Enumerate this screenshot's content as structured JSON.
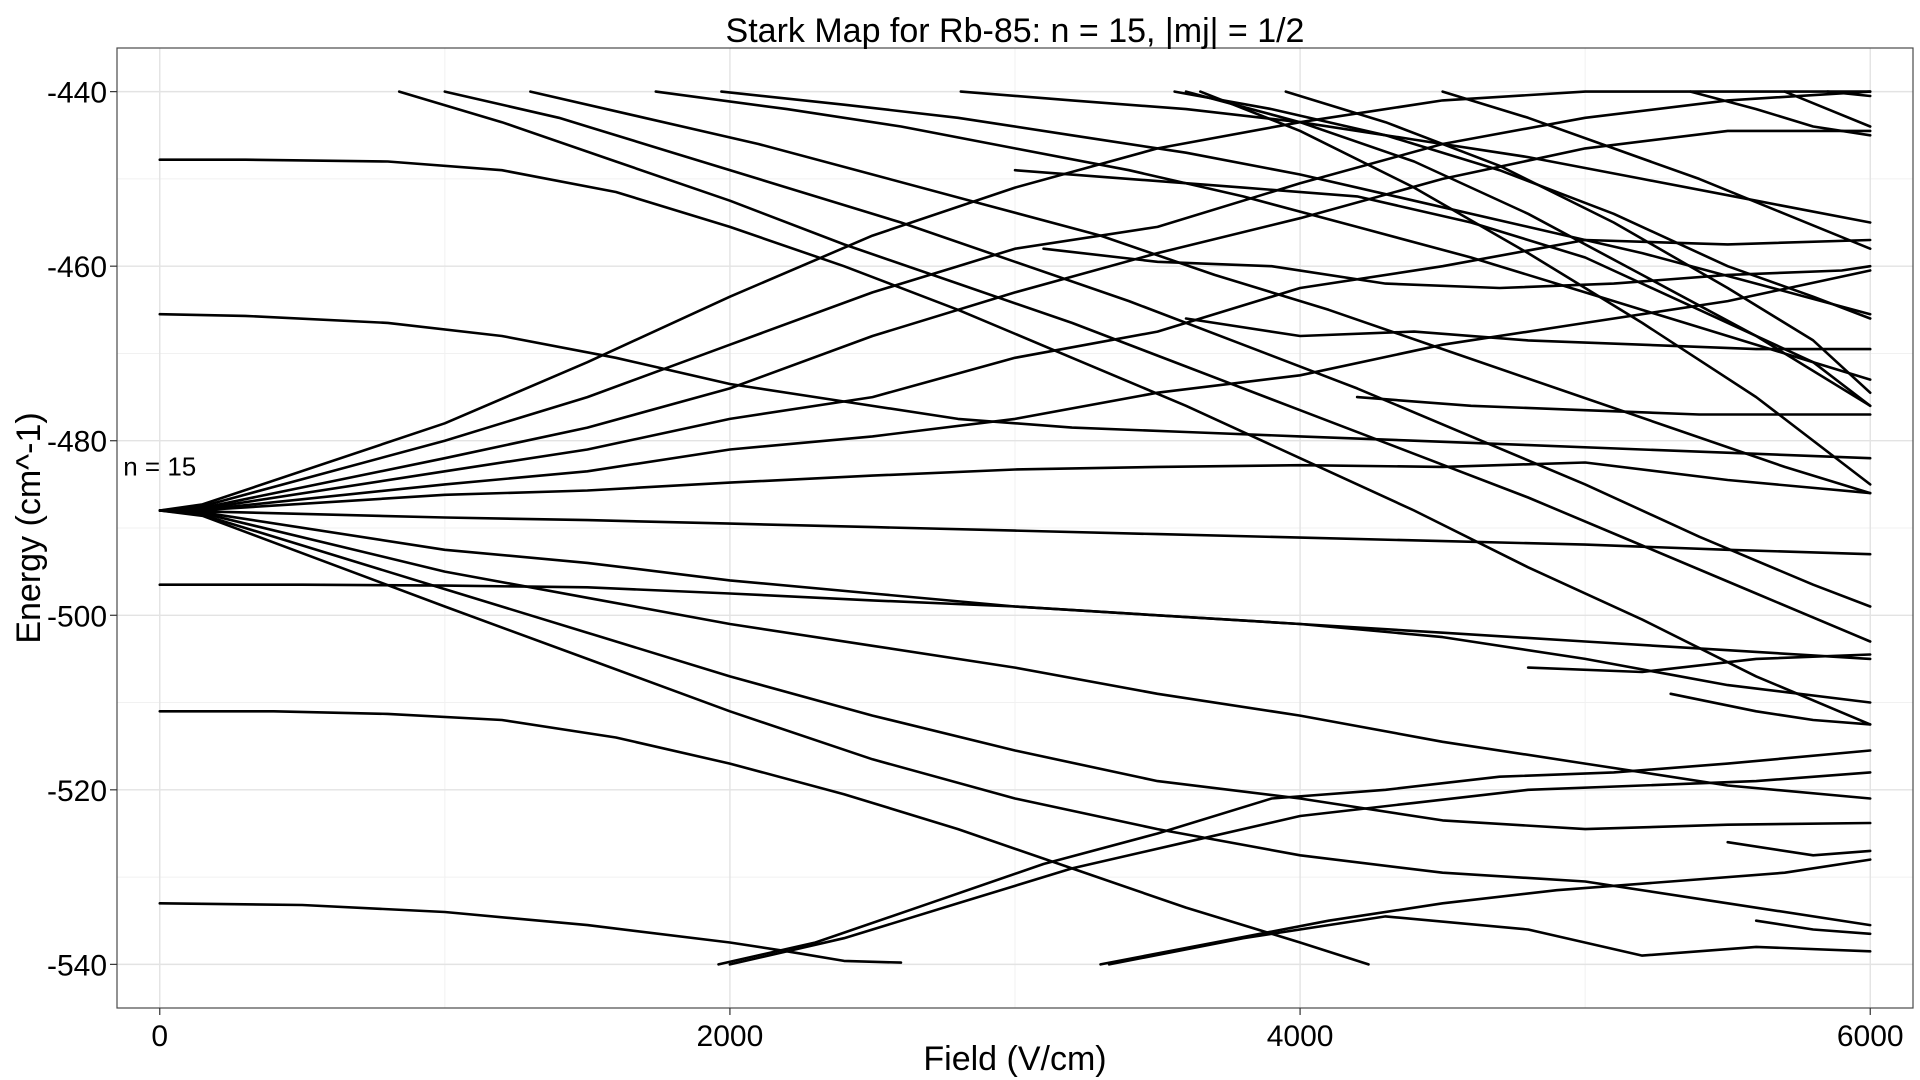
{
  "chart_data": {
    "type": "line",
    "title": "Stark Map for Rb-85: n = 15, |mj| = 1/2",
    "xlabel": "Field (V/cm)",
    "ylabel": "Energy (cm^-1)",
    "xlim": [
      -150,
      6150
    ],
    "ylim": [
      -545,
      -435
    ],
    "xticks": [
      0,
      2000,
      4000,
      6000
    ],
    "yticks": [
      -440,
      -460,
      -480,
      -500,
      -520,
      -540
    ],
    "grid": true,
    "legend": "none",
    "annotations": [
      {
        "text": "n = 15",
        "x": 0,
        "y": -484
      }
    ],
    "series": [
      {
        "x": [
          0,
          150,
          1000,
          1500,
          2000,
          2500,
          3000,
          3500,
          4000,
          4500,
          5000,
          5500,
          6000
        ],
        "y": [
          -488,
          -487.3,
          -478,
          -471,
          -463.5,
          -456.5,
          -451,
          -446.5,
          -443.5,
          -441,
          -440,
          -440,
          -440
        ]
      },
      {
        "x": [
          0,
          150,
          1000,
          1500,
          2000,
          2500,
          2800,
          3000,
          3500,
          4000,
          4500,
          5000,
          5500,
          6000
        ],
        "y": [
          -488,
          -487.5,
          -480,
          -475,
          -469,
          -463,
          -460,
          -458,
          -455.5,
          -450.5,
          -446,
          -443,
          -441,
          -440
        ]
      },
      {
        "x": [
          0,
          150,
          1000,
          1500,
          2000,
          2500,
          3000,
          3500,
          4000,
          4500,
          5000,
          5500,
          6000
        ],
        "y": [
          -488,
          -487.7,
          -482,
          -478.5,
          -474,
          -468,
          -463,
          -458.5,
          -454.5,
          -450,
          -446.5,
          -444.5,
          -444.5
        ]
      },
      {
        "x": [
          0,
          150,
          1000,
          1500,
          2000,
          2500,
          3000,
          3500,
          4000,
          4500,
          5000,
          5500,
          6000
        ],
        "y": [
          -488,
          -487.8,
          -483.5,
          -481,
          -477.5,
          -475,
          -470.5,
          -467.5,
          -462.5,
          -460,
          -457,
          -457.5,
          -457
        ]
      },
      {
        "x": [
          0,
          150,
          1000,
          1500,
          2000,
          2500,
          3000,
          3500,
          4000,
          4500,
          5000,
          5500,
          6000
        ],
        "y": [
          -488,
          -487.9,
          -485,
          -483.5,
          -481,
          -479.5,
          -477.5,
          -474.5,
          -472.5,
          -469,
          -466.5,
          -464,
          -460.5
        ]
      },
      {
        "x": [
          0,
          150,
          1000,
          1500,
          2000,
          2500,
          3000,
          3500,
          4000,
          4500,
          5000,
          5500,
          6000
        ],
        "y": [
          -488,
          -487.95,
          -486.2,
          -485.7,
          -484.8,
          -484,
          -483.3,
          -483,
          -482.8,
          -483,
          -482.5,
          -484.5,
          -486
        ]
      },
      {
        "x": [
          0,
          150,
          1000,
          1500,
          2000,
          2500,
          3000,
          3500,
          4000,
          4500,
          5000,
          5500,
          6000
        ],
        "y": [
          -488,
          -488.1,
          -488.8,
          -489.1,
          -489.5,
          -489.9,
          -490.3,
          -490.7,
          -491.1,
          -491.5,
          -491.9,
          -492.5,
          -493
        ]
      },
      {
        "x": [
          0,
          150,
          1000,
          1500,
          2000,
          2500,
          3000,
          3500,
          4000,
          4500,
          5000,
          5500,
          6000
        ],
        "y": [
          -488,
          -488.2,
          -492.5,
          -494,
          -496,
          -497.5,
          -499,
          -500,
          -501,
          -502,
          -503,
          -504,
          -505
        ]
      },
      {
        "x": [
          0,
          150,
          1000,
          1500,
          2000,
          2500,
          3000,
          3500,
          4000,
          4500,
          5000,
          5500,
          6000
        ],
        "y": [
          -488,
          -488.3,
          -495,
          -498,
          -501,
          -503.5,
          -506,
          -509,
          -511.5,
          -514.5,
          -517,
          -519.5,
          -521
        ]
      },
      {
        "x": [
          0,
          150,
          1000,
          1500,
          2000,
          2500,
          3000,
          3500,
          4000,
          4500,
          5000,
          5500,
          6000
        ],
        "y": [
          -488,
          -488.5,
          -497,
          -502,
          -507,
          -511.5,
          -515.5,
          -519,
          -521,
          -523.5,
          -524.5,
          -524,
          -523.8
        ]
      },
      {
        "x": [
          0,
          150,
          1000,
          1500,
          2000,
          2500,
          3000,
          3500,
          4000,
          4500,
          5000,
          5500,
          6000
        ],
        "y": [
          -488,
          -488.6,
          -499,
          -505,
          -511,
          -516.5,
          -521,
          -524.5,
          -527.5,
          -529.5,
          -530.5,
          -533,
          -535.5
        ]
      },
      {
        "x": [
          0,
          300,
          800,
          1200,
          1600,
          2000,
          2400,
          2800,
          3200,
          3600,
          4000,
          4400,
          4800,
          5200,
          5600,
          6000
        ],
        "y": [
          -447.8,
          -447.8,
          -448,
          -449,
          -451.5,
          -455.5,
          -460,
          -465,
          -470.5,
          -476,
          -482,
          -488,
          -494.5,
          -500.5,
          -507,
          -512.5
        ]
      },
      {
        "x": [
          0,
          300,
          800,
          1200,
          1600,
          2000,
          2400,
          2800,
          3200,
          3600,
          4000,
          4400,
          4800,
          5200,
          5600,
          6000
        ],
        "y": [
          -465.5,
          -465.7,
          -466.5,
          -468,
          -470.5,
          -473.5,
          -475.5,
          -477.5,
          -478.5,
          -479,
          -479.5,
          -480,
          -480.5,
          -481,
          -481.5,
          -482
        ]
      },
      {
        "x": [
          0,
          500,
          1000,
          1500,
          2000,
          2500,
          3000,
          3500,
          4000,
          4500,
          5000,
          5500,
          6000
        ],
        "y": [
          -496.5,
          -496.5,
          -496.6,
          -496.8,
          -497.5,
          -498.3,
          -499,
          -500,
          -501,
          -502.5,
          -505,
          -508,
          -510
        ]
      },
      {
        "x": [
          0,
          400,
          800,
          1200,
          1600,
          2000,
          2400,
          2800,
          3200,
          3600,
          4000,
          4240
        ],
        "y": [
          -511,
          -511,
          -511.3,
          -512,
          -514,
          -517,
          -520.5,
          -524.5,
          -529,
          -533.5,
          -537.5,
          -540
        ]
      },
      {
        "x": [
          0,
          500,
          1000,
          1500,
          2000,
          2200,
          2400,
          2600
        ],
        "y": [
          -533,
          -533.2,
          -534,
          -535.5,
          -537.5,
          -538.5,
          -539.6,
          -539.8
        ]
      },
      {
        "x": [
          1960,
          2300,
          2700,
          3100,
          3500,
          3900,
          4300,
          4700,
          5100,
          5500,
          6000
        ],
        "y": [
          -540,
          -537.5,
          -533,
          -528.5,
          -525,
          -521,
          -520,
          -518.5,
          -518,
          -517,
          -515.5
        ]
      },
      {
        "x": [
          2000,
          2400,
          2800,
          3200,
          3600,
          4000,
          4400,
          4800,
          5200,
          5600,
          6000
        ],
        "y": [
          -540,
          -537,
          -533,
          -529,
          -526,
          -523,
          -521.5,
          -520,
          -519.5,
          -519,
          -518
        ]
      },
      {
        "x": [
          3300,
          3700,
          4100,
          4500,
          4900,
          5300,
          5700,
          6000
        ],
        "y": [
          -540,
          -537.5,
          -535,
          -533,
          -531.5,
          -530.5,
          -529.5,
          -528
        ]
      },
      {
        "x": [
          3330,
          3800,
          4300,
          4800,
          5200,
          5600,
          6000
        ],
        "y": [
          -540,
          -537,
          -534.5,
          -536,
          -539,
          -538,
          -538.5
        ]
      },
      {
        "x": [
          840,
          1200,
          1600,
          2000,
          2400,
          2800,
          3200,
          3600,
          4000,
          4400,
          4800,
          5200,
          5600,
          6000
        ],
        "y": [
          -440,
          -443.5,
          -448,
          -452.5,
          -457.5,
          -462,
          -466.5,
          -471.5,
          -476.5,
          -481.5,
          -486.5,
          -492,
          -497.5,
          -503
        ]
      },
      {
        "x": [
          1000,
          1400,
          1800,
          2200,
          2600,
          3000,
          3400,
          3800,
          4200,
          4600,
          5000,
          5400,
          5800,
          6000
        ],
        "y": [
          -440,
          -443,
          -447,
          -451,
          -455,
          -459.5,
          -464,
          -469,
          -474,
          -479.5,
          -485,
          -491,
          -496.5,
          -499
        ]
      },
      {
        "x": [
          1300,
          1700,
          2100,
          2500,
          2900,
          3300,
          3700,
          4100,
          4500,
          4900,
          5300,
          5700,
          6000
        ],
        "y": [
          -440,
          -443,
          -446,
          -449.5,
          -453,
          -456.5,
          -461,
          -465,
          -469.5,
          -474,
          -478.5,
          -483,
          -486
        ]
      },
      {
        "x": [
          1740,
          2200,
          2600,
          3000,
          3400,
          3800,
          4200,
          4600,
          5000,
          5400,
          5800,
          6000
        ],
        "y": [
          -440,
          -442,
          -444,
          -446.5,
          -449,
          -452,
          -455.5,
          -459,
          -463,
          -467,
          -471,
          -473
        ]
      },
      {
        "x": [
          1970,
          2400,
          2800,
          3200,
          3600,
          4000,
          4400,
          4800,
          5200,
          5600,
          6000
        ],
        "y": [
          -440,
          -441.5,
          -443,
          -445,
          -447,
          -449.5,
          -452.5,
          -455.5,
          -458.5,
          -462,
          -465.5
        ]
      },
      {
        "x": [
          2810,
          3200,
          3600,
          4000,
          4400,
          4800,
          5200,
          5600,
          6000
        ],
        "y": [
          -440,
          -441,
          -442,
          -443.5,
          -445.5,
          -447.5,
          -450,
          -452.5,
          -455
        ]
      },
      {
        "x": [
          3560,
          3900,
          4300,
          4700,
          5100,
          5500,
          5800,
          6000
        ],
        "y": [
          -440,
          -442,
          -445,
          -449,
          -454,
          -460,
          -463.5,
          -466
        ]
      },
      {
        "x": [
          3600,
          4000,
          4400,
          4800,
          5200,
          5600,
          6000
        ],
        "y": [
          -440,
          -443.5,
          -448,
          -454,
          -461,
          -468,
          -476
        ]
      },
      {
        "x": [
          3650,
          4000,
          4400,
          4800,
          5200,
          5600,
          6000
        ],
        "y": [
          -440,
          -444.5,
          -451,
          -458.5,
          -466.5,
          -475,
          -485
        ]
      },
      {
        "x": [
          3950,
          4300,
          4700,
          5100,
          5500,
          5800,
          6000
        ],
        "y": [
          -440,
          -443.5,
          -448.5,
          -455,
          -462.5,
          -468.5,
          -474.5
        ]
      },
      {
        "x": [
          4500,
          4800,
          5100,
          5400,
          5700,
          6000
        ],
        "y": [
          -440,
          -443,
          -446.5,
          -450,
          -454,
          -458
        ]
      },
      {
        "x": [
          5370,
          5600,
          5800,
          6000
        ],
        "y": [
          -440,
          -442,
          -444,
          -445
        ]
      },
      {
        "x": [
          5700,
          5850,
          6000
        ],
        "y": [
          -440,
          -442,
          -444
        ]
      },
      {
        "x": [
          5850,
          6000
        ],
        "y": [
          -440,
          -440.5
        ]
      },
      {
        "x": [
          3000,
          3400,
          3800,
          4200,
          4600,
          5000,
          5400,
          5800,
          6000
        ],
        "y": [
          -449,
          -450,
          -451,
          -452,
          -455,
          -459,
          -465,
          -471,
          -476
        ]
      },
      {
        "x": [
          3100,
          3500,
          3900,
          4300,
          4700,
          5100,
          5500,
          5900,
          6000
        ],
        "y": [
          -458,
          -459.5,
          -460,
          -462,
          -462.5,
          -462,
          -461,
          -460.5,
          -460
        ]
      },
      {
        "x": [
          3600,
          4000,
          4400,
          4800,
          5200,
          5600,
          6000
        ],
        "y": [
          -466,
          -468,
          -467.5,
          -468.5,
          -469,
          -469.5,
          -469.5
        ]
      },
      {
        "x": [
          4200,
          4600,
          5000,
          5400,
          5800,
          6000
        ],
        "y": [
          -475,
          -476,
          -476.5,
          -477,
          -477,
          -477
        ]
      },
      {
        "x": [
          4800,
          5200,
          5600,
          6000
        ],
        "y": [
          -506,
          -506.5,
          -505,
          -504.5
        ]
      },
      {
        "x": [
          5300,
          5600,
          5800,
          6000
        ],
        "y": [
          -509,
          -511,
          -512,
          -512.5
        ]
      },
      {
        "x": [
          5500,
          5800,
          6000
        ],
        "y": [
          -526,
          -527.5,
          -527
        ]
      },
      {
        "x": [
          5600,
          5800,
          6000
        ],
        "y": [
          -535,
          -536,
          -536.5
        ]
      }
    ]
  }
}
